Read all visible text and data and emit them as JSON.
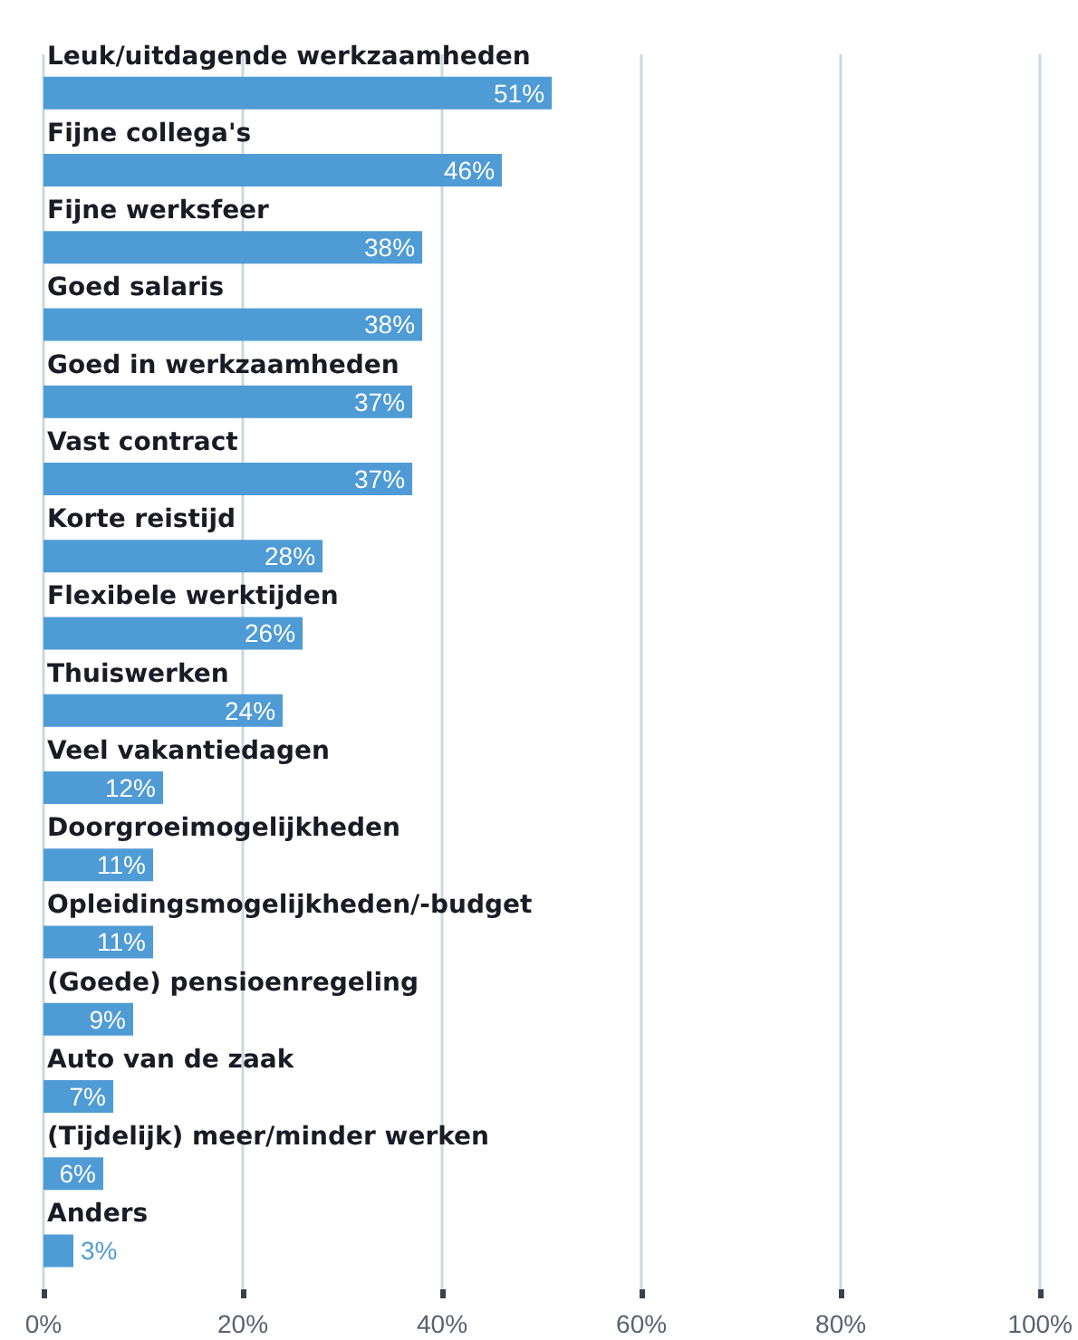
{
  "chart_data": {
    "type": "bar",
    "orientation": "horizontal",
    "categories": [
      "Leuk/uitdagende werkzaamheden",
      "Fijne collega's",
      "Fijne werksfeer",
      "Goed salaris",
      "Goed in werkzaamheden",
      "Vast contract",
      "Korte reistijd",
      "Flexibele werktijden",
      "Thuiswerken",
      "Veel vakantiedagen",
      "Doorgroeimogelijkheden",
      "Opleidingsmogelijkheden/-budget",
      "(Goede) pensioenregeling",
      "Auto van de zaak",
      "(Tijdelijk) meer/minder werken",
      "Anders"
    ],
    "values": [
      51,
      46,
      38,
      38,
      37,
      37,
      28,
      26,
      24,
      12,
      11,
      11,
      9,
      7,
      6,
      3
    ],
    "value_labels": [
      "51%",
      "46%",
      "38%",
      "38%",
      "37%",
      "37%",
      "28%",
      "26%",
      "24%",
      "12%",
      "11%",
      "11%",
      "9%",
      "7%",
      "6%",
      "3%"
    ],
    "color": "#4f9bd5",
    "xlim": [
      0,
      100
    ],
    "xticks": [
      {
        "value": 0,
        "label": "0%"
      },
      {
        "value": 20,
        "label": "20%"
      },
      {
        "value": 40,
        "label": "40%"
      },
      {
        "value": 60,
        "label": "60%"
      },
      {
        "value": 80,
        "label": "80%"
      },
      {
        "value": 100,
        "label": "100%"
      }
    ],
    "grid": "x"
  }
}
